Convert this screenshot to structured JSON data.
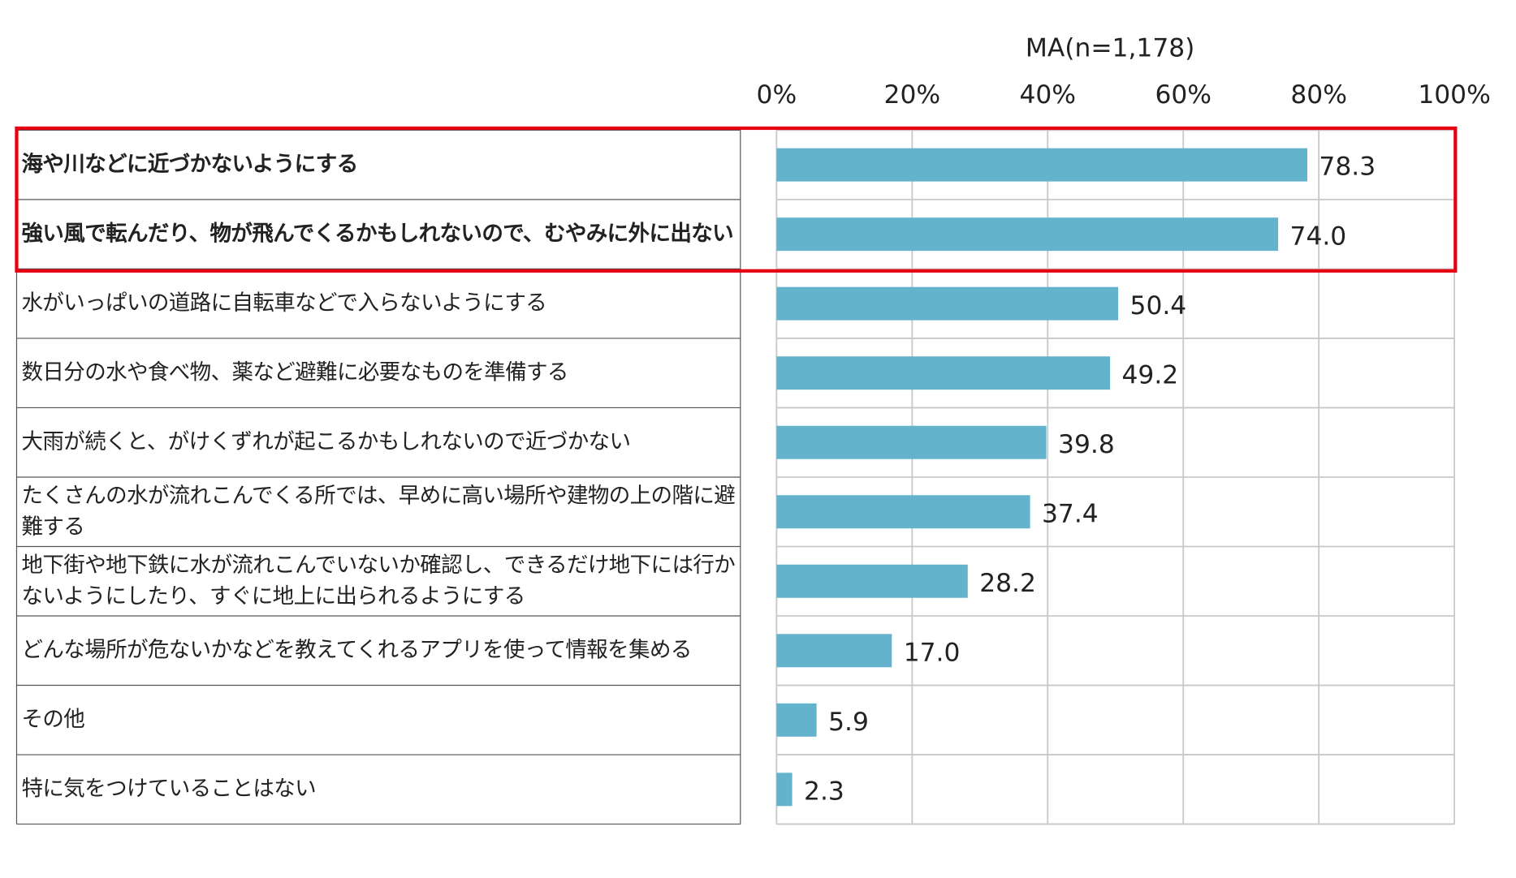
{
  "chart_data": {
    "type": "hbar",
    "title": "MA(n=1,178)",
    "categories": [
      "海や川などに近づかないようにする",
      "強い風で転んだり、物が飛んでくるかもしれないので、むやみに外に出ない",
      "水がいっぱいの道路に自転車などで入らないようにする",
      "数日分の水や食べ物、薬など避難に必要なものを準備する",
      "大雨が続くと、がけくずれが起こるかもしれないので近づかない",
      "たくさんの水が流れこんでくる所では、早めに高い場所や建物の上の階に避難する",
      "地下街や地下鉄に水が流れこんでいないか確認し、できるだけ地下には行かないようにしたり、すぐに地上に出られるようにする",
      "どんな場所が危ないかなどを教えてくれるアプリを使って情報を集める",
      "その他",
      "特に気をつけていることはない"
    ],
    "values": [
      78.3,
      74,
      50.4,
      49.2,
      39.8,
      37.4,
      28.2,
      17,
      5.9,
      2.3
    ],
    "value_labels": [
      "78.3",
      "74.0",
      "50.4",
      "49.2",
      "39.8",
      "37.4",
      "28.2",
      "17.0",
      "5.9",
      "2.3"
    ],
    "color": "#62b3cb",
    "xlim": [
      0,
      100
    ],
    "xticks": [
      {
        "value": 0,
        "label": "0%"
      },
      {
        "value": 20,
        "label": "20%"
      },
      {
        "value": 40,
        "label": "40%"
      },
      {
        "value": 60,
        "label": "60%"
      },
      {
        "value": 80,
        "label": "80%"
      },
      {
        "value": 100,
        "label": "100%"
      }
    ],
    "grid": true,
    "highlight": {
      "rows": [
        0,
        1
      ],
      "color": "#e60012"
    }
  }
}
